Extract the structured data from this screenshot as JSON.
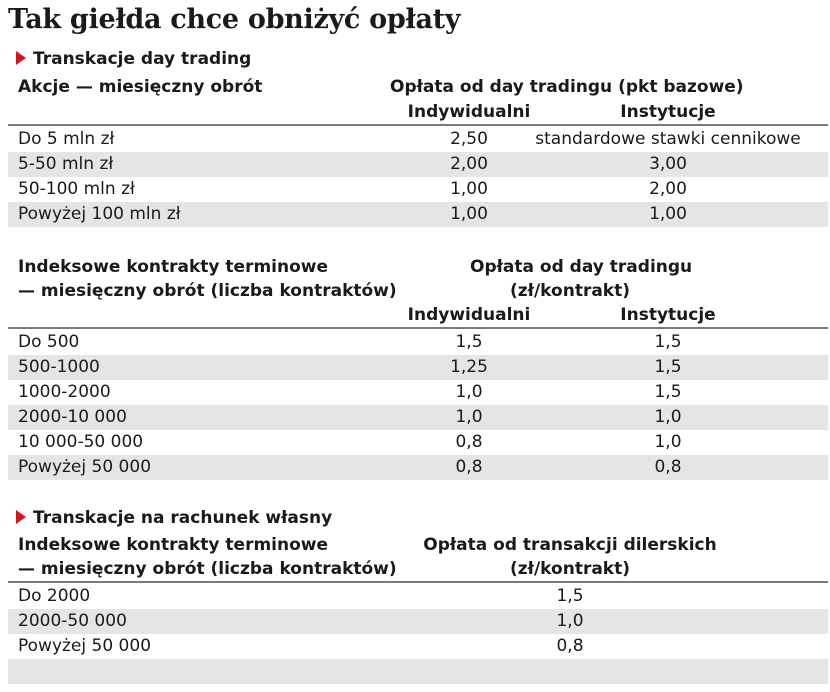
{
  "title": "Tak giełda chce obniżyć opłaty",
  "section1": {
    "heading": "Transkacje day trading",
    "col0_header": "Akcje — miesięczny obrót",
    "fee_header": "Opłata od day tradingu (pkt bazowe)",
    "col1_header": "Indywidualni",
    "col2_header": "Instytucje",
    "rows": [
      {
        "label": "Do 5 mln zł",
        "ind": "2,50",
        "inst": "standardowe stawki cennikowe"
      },
      {
        "label": "5-50 mln zł",
        "ind": "2,00",
        "inst": "3,00"
      },
      {
        "label": "50-100 mln zł",
        "ind": "1,00",
        "inst": "2,00"
      },
      {
        "label": "Powyżej 100 mln zł",
        "ind": "1,00",
        "inst": "1,00"
      }
    ]
  },
  "section2": {
    "col0_header_line1": "Indeksowe kontrakty terminowe",
    "col0_header_line2": "— miesięczny obrót (liczba kontraktów)",
    "fee_header_line1": "Opłata od day tradingu",
    "fee_header_line2": "(zł/kontrakt)",
    "col1_header": "Indywidualni",
    "col2_header": "Instytucje",
    "rows": [
      {
        "label": "Do 500",
        "ind": "1,5",
        "inst": "1,5"
      },
      {
        "label": "500-1000",
        "ind": "1,25",
        "inst": "1,5"
      },
      {
        "label": "1000-2000",
        "ind": "1,0",
        "inst": "1,5"
      },
      {
        "label": "2000-10 000",
        "ind": "1,0",
        "inst": "1,0"
      },
      {
        "label": "10 000-50 000",
        "ind": "0,8",
        "inst": "1,0"
      },
      {
        "label": "Powyżej 50 000",
        "ind": "0,8",
        "inst": "0,8"
      }
    ]
  },
  "section3": {
    "heading": "Transkacje na rachunek własny",
    "col0_header_line1": "Indeksowe kontrakty terminowe",
    "col0_header_line2": "— miesięczny obrót (liczba kontraktów)",
    "fee_header_line1": "Opłata od transakcji dilerskich",
    "fee_header_line2": "(zł/kontrakt)",
    "rows": [
      {
        "label": "Do 2000",
        "fee": "1,5"
      },
      {
        "label": "2000-50 000",
        "fee": "1,0"
      },
      {
        "label": "Powyżej 50 000",
        "fee": "0,8"
      }
    ]
  }
}
